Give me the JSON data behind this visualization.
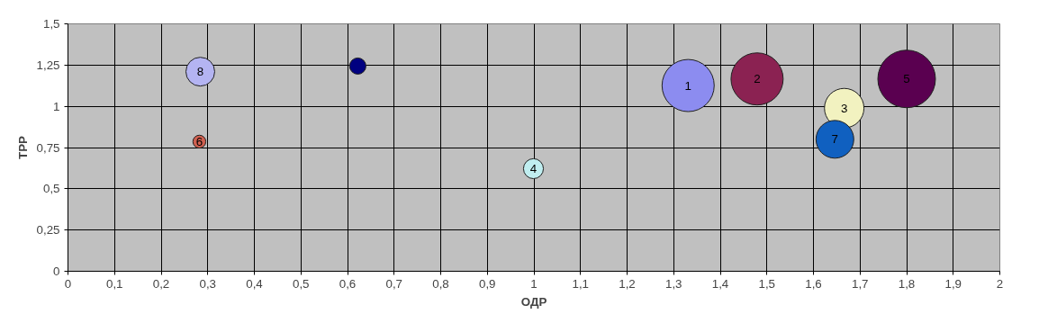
{
  "chart_data": {
    "type": "bubble",
    "xlabel": "ОДР",
    "ylabel": "ТРР",
    "x": [
      1.331,
      1.479,
      1.666,
      0.999,
      1.8,
      0.282,
      1.646,
      0.284,
      0.622
    ],
    "values": [
      1.126,
      1.166,
      0.989,
      0.622,
      1.166,
      0.786,
      0.8,
      1.21,
      1.244
    ],
    "sizes": [
      0.82,
      0.82,
      0.47,
      0.12,
      1,
      0.05,
      0.43,
      0.25,
      0.08
    ],
    "colors": [
      "#8c8cf0",
      "#8b2252",
      "#f2f2c0",
      "#c0eef0",
      "#5a0050",
      "#d06050",
      "#1060c0",
      "#b4b4f2",
      "#000080"
    ],
    "xlim": [
      0,
      2
    ],
    "xticks": [
      0,
      {
        "value": 0.1,
        "label": "0,1"
      },
      {
        "value": 0.2,
        "label": "0,2"
      },
      {
        "value": 0.3,
        "label": "0,3"
      },
      {
        "value": 0.4,
        "label": "0,4"
      },
      {
        "value": 0.5,
        "label": "0,5"
      },
      {
        "value": 0.6,
        "label": "0,6"
      },
      {
        "value": 0.7,
        "label": "0,7"
      },
      {
        "value": 0.8,
        "label": "0,8"
      },
      {
        "value": 0.9,
        "label": "0,9"
      },
      1,
      {
        "value": 1.1,
        "label": "1,1"
      },
      {
        "value": 1.2,
        "label": "1,2"
      },
      {
        "value": 1.3,
        "label": "1,3"
      },
      {
        "value": 1.4,
        "label": "1,4"
      },
      {
        "value": 1.5,
        "label": "1,5"
      },
      {
        "value": 1.6,
        "label": "1,6"
      },
      {
        "value": 1.7,
        "label": "1,7"
      },
      {
        "value": 1.8,
        "label": "1,8"
      },
      {
        "value": 1.9,
        "label": "1,9"
      },
      2
    ],
    "ylim": [
      0,
      1.5
    ],
    "yticks": [
      0,
      {
        "value": 0.25,
        "label": "0,25"
      },
      {
        "value": 0.5,
        "label": "0,5"
      },
      {
        "value": 0.75,
        "label": "0,75"
      },
      1,
      {
        "value": 1.25,
        "label": "1,25"
      },
      {
        "value": 1.5,
        "label": "1,5"
      }
    ],
    "grid": true,
    "marker": "circle",
    "annotations": [
      {
        "text": "1",
        "x": 1.331,
        "y": 1.126
      },
      {
        "text": "2",
        "x": 1.479,
        "y": 1.166
      },
      {
        "text": "3",
        "x": 1.666,
        "y": 0.989
      },
      {
        "text": "4",
        "x": 0.999,
        "y": 0.622
      },
      {
        "text": "5",
        "x": 1.8,
        "y": 1.166
      },
      {
        "text": "6",
        "x": 0.282,
        "y": 0.786
      },
      {
        "text": "7",
        "x": 1.646,
        "y": 0.8
      },
      {
        "text": "8",
        "x": 0.284,
        "y": 1.21
      }
    ]
  }
}
